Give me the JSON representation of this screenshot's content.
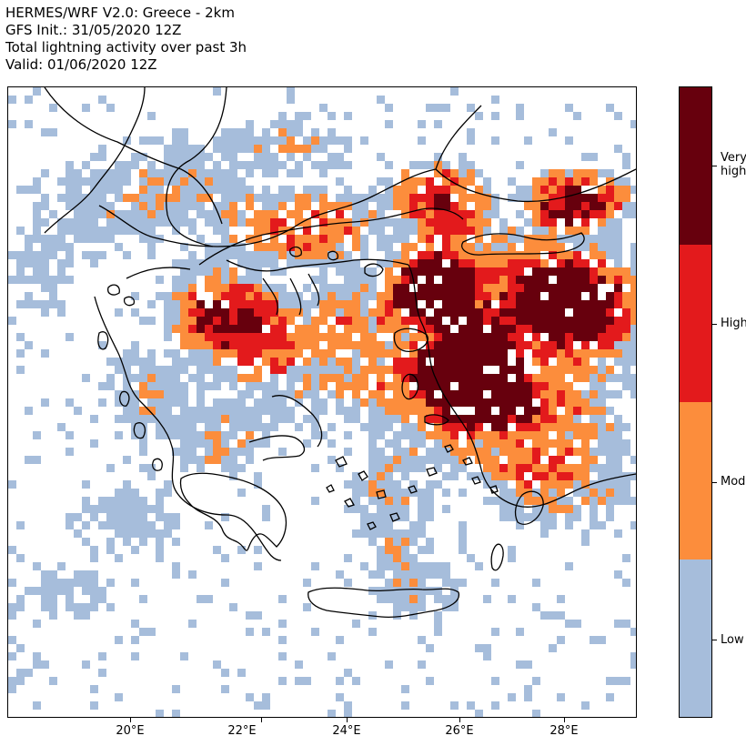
{
  "title": {
    "line1": "HERMES/WRF V2.0: Greece - 2km",
    "line2": "GFS Init.: 31/05/2020 12Z",
    "line3": "Total lightning activity over past 3h",
    "line4": "Valid: 01/06/2020 12Z"
  },
  "map": {
    "x_ticks": [
      "20°E",
      "22°E",
      "24°E",
      "26°E",
      "28°E"
    ],
    "coastline_color": "#000000"
  },
  "colorbar": {
    "levels": [
      {
        "label": "Low",
        "color": "#a6bddb"
      },
      {
        "label": "Mod",
        "color": "#fc8d3c"
      },
      {
        "label": "High",
        "color": "#e31a1c"
      },
      {
        "label": "Very\nhigh",
        "color": "#67000d"
      }
    ]
  }
}
